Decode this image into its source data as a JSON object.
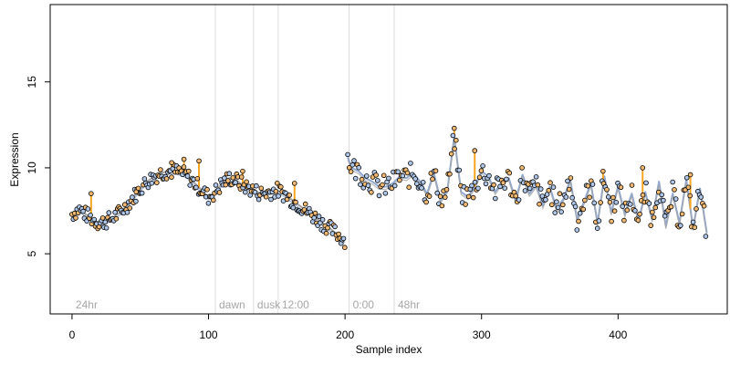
{
  "chart_data": {
    "type": "scatter",
    "title": "",
    "xlabel": "Sample index",
    "ylabel": "Expression",
    "xlim": [
      -16,
      480
    ],
    "ylim": [
      1.5,
      19.5
    ],
    "x_ticks": [
      0,
      100,
      200,
      300,
      400
    ],
    "y_ticks": [
      5,
      10,
      15
    ],
    "grid": false,
    "legend": "none",
    "region_markers": [
      {
        "label": "24hr",
        "x": 0,
        "line": false
      },
      {
        "label": "dawn",
        "x": 105,
        "line": true
      },
      {
        "label": "dusk",
        "x": 133,
        "line": true
      },
      {
        "label": "12:00",
        "x": 151,
        "line": true
      },
      {
        "label": "0:00",
        "x": 203,
        "line": true
      },
      {
        "label": "48hr",
        "x": 236,
        "line": true
      }
    ],
    "segments": [
      {
        "name": "24hr",
        "x": [
          0,
          5,
          10,
          15,
          20,
          25,
          30,
          35,
          40,
          45,
          50,
          55,
          60,
          65,
          70,
          75,
          80,
          85,
          90,
          95,
          100,
          105,
          110,
          115,
          120,
          125,
          130,
          135,
          140,
          145,
          150,
          155,
          160,
          165,
          170,
          175,
          180,
          185,
          190,
          195,
          200
        ],
        "y": [
          7.3,
          7.6,
          7.3,
          7.0,
          6.8,
          6.9,
          7.1,
          7.4,
          7.8,
          8.3,
          8.8,
          9.2,
          9.5,
          9.7,
          9.8,
          9.8,
          9.7,
          9.5,
          9.1,
          8.7,
          8.3,
          8.6,
          9.1,
          9.4,
          9.3,
          9.0,
          8.8,
          8.6,
          8.5,
          8.6,
          8.7,
          8.5,
          8.2,
          7.9,
          7.6,
          7.3,
          7.0,
          6.7,
          6.4,
          6.1,
          5.8
        ]
      },
      {
        "name": "48hr",
        "x": [
          202,
          205,
          210,
          215,
          220,
          225,
          230,
          235,
          240,
          245,
          250,
          255,
          260,
          265,
          270,
          275,
          280,
          285,
          290,
          295,
          300,
          305,
          310,
          315,
          320,
          325,
          330,
          335,
          340,
          345,
          350,
          355,
          360,
          365,
          370,
          375,
          380,
          385,
          390,
          395,
          400,
          405,
          410,
          415,
          420,
          425,
          430,
          435,
          440,
          445,
          450,
          455,
          460,
          465
        ],
        "y": [
          10.6,
          10.0,
          9.8,
          9.4,
          9.2,
          8.9,
          8.9,
          9.1,
          9.5,
          9.4,
          9.7,
          9.2,
          8.5,
          9.7,
          8.1,
          8.7,
          11.8,
          8.6,
          8.3,
          8.9,
          9.8,
          9.5,
          8.6,
          9.2,
          9.4,
          8.1,
          9.6,
          8.5,
          9.0,
          7.8,
          8.9,
          7.6,
          8.2,
          9.3,
          7.0,
          8.0,
          9.1,
          6.8,
          9.5,
          7.4,
          8.9,
          7.3,
          8.5,
          6.9,
          8.6,
          7.0,
          9.2,
          6.6,
          8.5,
          6.8,
          9.3,
          6.5,
          8.8,
          6.2
        ]
      }
    ],
    "highlight_spikes": [
      {
        "x": 14,
        "y": 8.5
      },
      {
        "x": 47,
        "y": 8.6
      },
      {
        "x": 73,
        "y": 10.3
      },
      {
        "x": 82,
        "y": 10.5
      },
      {
        "x": 93,
        "y": 10.4
      },
      {
        "x": 125,
        "y": 9.8
      },
      {
        "x": 163,
        "y": 9.1
      },
      {
        "x": 280,
        "y": 12.3
      },
      {
        "x": 295,
        "y": 11.0
      },
      {
        "x": 389,
        "y": 9.8
      },
      {
        "x": 418,
        "y": 10.0
      },
      {
        "x": 453,
        "y": 9.6
      }
    ],
    "colors": {
      "line": "#8fa8d0",
      "line_alt": "#a6a6a6",
      "spike": "#f5a623",
      "point_fill_a": "#f0b870",
      "point_fill_b": "#aec6e8",
      "point_stroke": "#000000",
      "region_line": "#dcdcdc",
      "region_text": "#a6a6a6"
    }
  }
}
